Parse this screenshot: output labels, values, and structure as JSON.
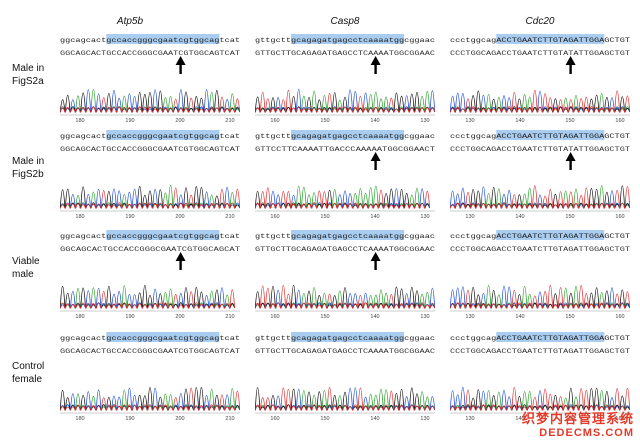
{
  "columns": [
    {
      "title": "Atp5b",
      "ref": "ggcagcactgccaccgggcgaatcgtggcagtcat",
      "hl_start": 9,
      "hl_len": 22
    },
    {
      "title": "Casp8",
      "ref": "gttgcttgcagagatgagcctcaaaatggcggaac",
      "hl_start": 7,
      "hl_len": 22
    },
    {
      "title": "Cdc20",
      "ref": "ccctggcagACCTGAATCTTGTAGATTGGAGCTGT",
      "hl_start": 9,
      "hl_len": 21
    }
  ],
  "rows": [
    {
      "label": "Male in\nFigS2a",
      "reads": [
        "GGCAGCACTGCCACCGGGCGAATCGTGGCAGTCAT",
        "GTTGCTTGCAGAGATGAGCCTCAAAATGGCGGAAC",
        "CCCTGGCAGACCTGAATCTTGTATATTGGAGCTGT"
      ],
      "arrows": [
        true,
        true,
        true
      ]
    },
    {
      "label": "Male in\nFigS2b",
      "reads": [
        "GGCAGCACTGCCACCGGGCGAATCGTGGCAGTCAT",
        "GTTCCTTCAAAATTGACCCAAAAATGGCGGAACT",
        "CCCTGGCAGACCTGAATCTTGTATATTGGAGCTGT"
      ],
      "arrows": [
        false,
        true,
        true
      ]
    },
    {
      "label": "Viable\nmale",
      "reads": [
        "GGCAGCACTGCCACCGGGCGAATCGTGGCAGCAT",
        "GTTGCTTGCAGAGATGAGCCTCAAAATGGCGGAAC",
        "CCCTGGCAGACCTGAATCTTGTAGATTGGAGCTGT"
      ],
      "arrows": [
        true,
        true,
        false
      ]
    },
    {
      "label": "Control\nfemale",
      "reads": [
        "GGCAGCACTGCCACCGGGCGAATCGTGGCAGTCAT",
        "GTTGCTTGCAGAGATGAGCCTCAAAATGGCGGAAC",
        "CCCTGGCAGACCTGAATCTTGTAGATTGGAGCTGT"
      ],
      "arrows": [
        false,
        false,
        false
      ]
    }
  ],
  "axis_ticks": [
    [
      "180",
      "190",
      "200",
      "210"
    ],
    [
      "160",
      "150",
      "140",
      "130"
    ],
    [
      "130",
      "140",
      "150",
      "160"
    ]
  ],
  "watermark": {
    "zh": "织梦内容管理系统",
    "en": "DEDECMS.COM"
  }
}
